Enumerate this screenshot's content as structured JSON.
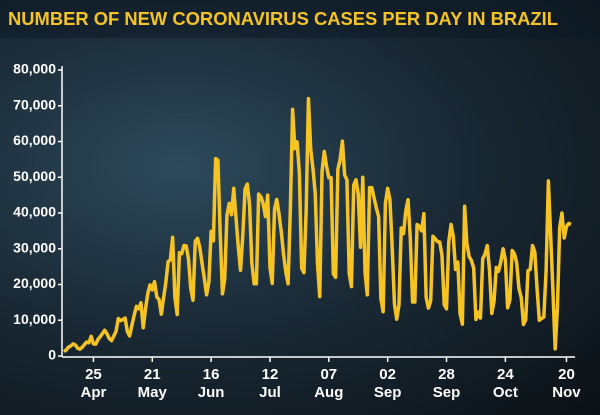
{
  "chart_data": {
    "type": "line",
    "title": "NUMBER OF NEW CORONAVIRUS CASES PER DAY IN BRAZIL",
    "color": "#f6c324",
    "ylim": [
      0,
      80000
    ],
    "yticks": [
      0,
      {
        "value": 10000,
        "label": "10,000"
      },
      {
        "value": 20000,
        "label": "20,000"
      },
      {
        "value": 30000,
        "label": "30,000"
      },
      {
        "value": 40000,
        "label": "40,000"
      },
      {
        "value": 50000,
        "label": "50,000"
      },
      {
        "value": 60000,
        "label": "60,000"
      },
      {
        "value": 70000,
        "label": "70,000"
      },
      {
        "value": 80000,
        "label": "80,000"
      }
    ],
    "categories": [
      null,
      null,
      null,
      null,
      null,
      null,
      null,
      null,
      null,
      null,
      null,
      null,
      null,
      "25\nApr",
      null,
      null,
      null,
      null,
      null,
      null,
      null,
      null,
      null,
      null,
      null,
      null,
      null,
      null,
      null,
      null,
      null,
      null,
      null,
      null,
      null,
      null,
      null,
      null,
      null,
      "21\nMay",
      null,
      null,
      null,
      null,
      null,
      null,
      null,
      null,
      null,
      null,
      null,
      null,
      null,
      null,
      null,
      null,
      null,
      null,
      null,
      null,
      null,
      null,
      null,
      null,
      null,
      "16\nJun",
      null,
      null,
      null,
      null,
      null,
      null,
      null,
      null,
      null,
      null,
      null,
      null,
      null,
      null,
      null,
      null,
      null,
      null,
      null,
      null,
      null,
      null,
      null,
      null,
      null,
      "12\nJul",
      null,
      null,
      null,
      null,
      null,
      null,
      null,
      null,
      null,
      null,
      null,
      null,
      null,
      null,
      null,
      null,
      null,
      null,
      null,
      null,
      null,
      null,
      null,
      null,
      null,
      "07\nAug",
      null,
      null,
      null,
      null,
      null,
      null,
      null,
      null,
      null,
      null,
      null,
      null,
      null,
      null,
      null,
      null,
      null,
      null,
      null,
      null,
      null,
      null,
      null,
      null,
      null,
      "02\nSep",
      null,
      null,
      null,
      null,
      null,
      null,
      null,
      null,
      null,
      null,
      null,
      null,
      null,
      null,
      null,
      null,
      null,
      null,
      null,
      null,
      null,
      null,
      null,
      null,
      null,
      "28\nSep",
      null,
      null,
      null,
      null,
      null,
      null,
      null,
      null,
      null,
      null,
      null,
      null,
      null,
      null,
      null,
      null,
      null,
      null,
      null,
      null,
      null,
      null,
      null,
      null,
      null,
      "24\nOct",
      null,
      null,
      null,
      null,
      null,
      null,
      null,
      null,
      null,
      null,
      null,
      null,
      null,
      null,
      null,
      null,
      null,
      null,
      null,
      null,
      null,
      null,
      null,
      null,
      null,
      null,
      "20\nNov",
      null,
      null
    ],
    "values": [
      1200,
      1700,
      2500,
      2800,
      3400,
      3100,
      2200,
      1900,
      2400,
      3200,
      3900,
      3700,
      5500,
      3400,
      3300,
      4600,
      5400,
      6300,
      7200,
      6200,
      4900,
      4300,
      5600,
      6900,
      10500,
      9900,
      10200,
      10600,
      6800,
      5600,
      8600,
      11400,
      13900,
      13200,
      14900,
      7900,
      13100,
      17400,
      19900,
      18500,
      20800,
      16500,
      15800,
      11700,
      16300,
      20600,
      26400,
      26900,
      33200,
      16400,
      11600,
      28900,
      28600,
      30900,
      30800,
      27100,
      18900,
      15600,
      32100,
      32900,
      30400,
      25900,
      21700,
      17100,
      20600,
      34900,
      32200,
      55200,
      54800,
      34700,
      17400,
      21400,
      39400,
      42700,
      39500,
      46900,
      38700,
      30500,
      24000,
      33800,
      46700,
      48100,
      42200,
      26000,
      20200,
      20200,
      45300,
      44500,
      42600,
      39000,
      45000,
      24800,
      20300,
      41000,
      43800,
      39700,
      34700,
      28500,
      23500,
      20200,
      41000,
      69000,
      58000,
      59900,
      51100,
      24600,
      23300,
      40800,
      72000,
      57800,
      52400,
      45400,
      25800,
      16600,
      51600,
      57200,
      53100,
      49900,
      49900,
      23000,
      22000,
      52200,
      55000,
      60100,
      50600,
      49300,
      23100,
      19400,
      47800,
      49300,
      45300,
      30400,
      50000,
      23400,
      17100,
      47100,
      47100,
      44200,
      41400,
      39000,
      16100,
      12400,
      42700,
      46900,
      43700,
      30400,
      14500,
      10300,
      14300,
      35800,
      34200,
      40600,
      43700,
      33000,
      15100,
      15100,
      36800,
      36300,
      35000,
      39800,
      16400,
      13400,
      15400,
      33500,
      32800,
      32000,
      31900,
      28100,
      14300,
      13200,
      32000,
      36800,
      33400,
      24200,
      26300,
      11800,
      8900,
      41900,
      31500,
      27800,
      26700,
      24600,
      10200,
      12300,
      10600,
      27200,
      28500,
      30900,
      24000,
      11900,
      15300,
      24800,
      23700,
      26400,
      30000,
      26900,
      13500,
      15700,
      29500,
      28600,
      26100,
      18900,
      16400,
      8800,
      10100,
      23900,
      24200,
      30900,
      29100,
      18900,
      10000,
      10500,
      10900,
      23900,
      49000,
      33900,
      18600,
      2000,
      13400,
      35900,
      40000,
      33000,
      36200,
      37100,
      36800
    ]
  }
}
